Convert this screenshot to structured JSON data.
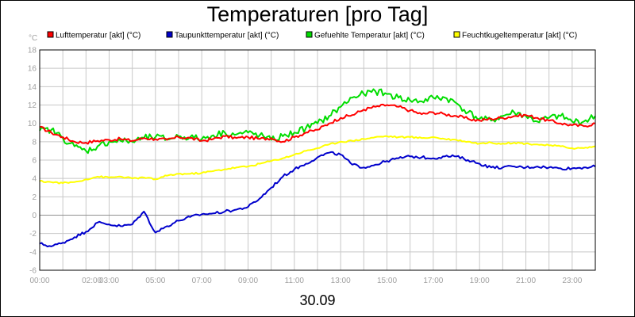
{
  "chart_data": {
    "type": "line",
    "title": "Temperaturen [pro Tag]",
    "date_label": "30.09",
    "y_unit": "°C",
    "xlim": [
      0,
      24
    ],
    "ylim": [
      -6,
      18
    ],
    "y_ticks": [
      -6,
      -4,
      -2,
      0,
      2,
      4,
      6,
      8,
      10,
      12,
      14,
      16,
      18
    ],
    "x_tick_labels": [
      {
        "h": 0,
        "label": "00:00"
      },
      {
        "h": 2.25,
        "label": "02:00"
      },
      {
        "h": 3.0,
        "label": "03:00"
      },
      {
        "h": 5.0,
        "label": "05:00"
      },
      {
        "h": 7.0,
        "label": "07:00"
      },
      {
        "h": 9.0,
        "label": "09:00"
      },
      {
        "h": 11.0,
        "label": "11:00"
      },
      {
        "h": 13.0,
        "label": "13:00"
      },
      {
        "h": 15.0,
        "label": "15:00"
      },
      {
        "h": 17.0,
        "label": "17:00"
      },
      {
        "h": 19.0,
        "label": "19:00"
      },
      {
        "h": 21.0,
        "label": "21:00"
      },
      {
        "h": 23.0,
        "label": "23:00"
      }
    ],
    "grid": true,
    "legend_position": "top",
    "x": [
      0,
      0.5,
      1,
      1.5,
      2,
      2.5,
      3,
      3.5,
      4,
      4.5,
      5,
      5.5,
      6,
      6.5,
      7,
      7.5,
      8,
      8.5,
      9,
      9.5,
      10,
      10.5,
      11,
      11.5,
      12,
      12.5,
      13,
      13.5,
      14,
      14.5,
      15,
      15.5,
      16,
      16.5,
      17,
      17.5,
      18,
      18.5,
      19,
      19.5,
      20,
      20.5,
      21,
      21.5,
      22,
      22.5,
      23,
      23.5,
      24
    ],
    "series": [
      {
        "name": "Lufttemperatur [akt] (°C)",
        "color": "#ff0000",
        "values": [
          9.6,
          9.0,
          8.5,
          8.0,
          7.9,
          8.1,
          8.2,
          8.3,
          8.1,
          8.4,
          8.3,
          8.2,
          8.5,
          8.4,
          8.1,
          8.3,
          8.6,
          8.4,
          8.5,
          8.3,
          8.4,
          8.0,
          8.5,
          9.0,
          9.3,
          10.0,
          10.6,
          10.9,
          11.5,
          11.8,
          12.0,
          11.8,
          11.4,
          11.0,
          11.2,
          11.0,
          10.8,
          10.5,
          10.3,
          10.5,
          10.6,
          10.8,
          10.9,
          10.6,
          10.3,
          10.0,
          9.8,
          9.7,
          10.0
        ]
      },
      {
        "name": "Taupunkttemperatur [akt] (°C)",
        "color": "#0000cc",
        "values": [
          -3.1,
          -3.4,
          -3.0,
          -2.4,
          -1.8,
          -0.8,
          -1.0,
          -1.2,
          -1.0,
          0.4,
          -1.9,
          -1.2,
          -0.6,
          -0.2,
          0.1,
          0.2,
          0.4,
          0.6,
          0.9,
          1.8,
          3.0,
          4.2,
          5.0,
          5.6,
          6.3,
          6.8,
          6.6,
          5.5,
          5.2,
          5.5,
          5.9,
          6.2,
          6.4,
          6.3,
          6.2,
          6.4,
          6.4,
          6.0,
          5.6,
          5.2,
          5.2,
          5.3,
          5.2,
          5.3,
          5.2,
          5.1,
          5.1,
          5.2,
          5.3
        ]
      },
      {
        "name": "Gefuehlte Temperatur [akt] (°C)",
        "color": "#00dd00",
        "values": [
          9.2,
          9.3,
          8.4,
          7.5,
          7.0,
          7.5,
          8.0,
          8.1,
          8.0,
          8.4,
          8.5,
          8.3,
          8.6,
          8.5,
          8.3,
          8.7,
          9.0,
          8.8,
          9.0,
          8.7,
          8.2,
          8.6,
          9.0,
          9.5,
          10.0,
          10.8,
          11.8,
          12.8,
          13.2,
          13.5,
          13.2,
          12.8,
          12.5,
          12.4,
          12.8,
          12.8,
          12.2,
          11.2,
          10.5,
          10.3,
          10.8,
          11.2,
          10.8,
          10.2,
          10.6,
          10.8,
          10.2,
          10.2,
          10.8
        ]
      },
      {
        "name": "Feuchtkugeltemperatur [akt] (°C)",
        "color": "#ffff00",
        "values": [
          3.7,
          3.6,
          3.5,
          3.6,
          3.9,
          4.2,
          4.1,
          4.2,
          4.0,
          4.1,
          3.9,
          4.3,
          4.5,
          4.5,
          4.6,
          4.8,
          5.0,
          5.2,
          5.3,
          5.6,
          5.9,
          6.2,
          6.6,
          7.0,
          7.3,
          7.7,
          8.0,
          8.1,
          8.3,
          8.5,
          8.6,
          8.5,
          8.5,
          8.4,
          8.5,
          8.3,
          8.2,
          8.0,
          7.8,
          7.9,
          7.8,
          7.9,
          7.8,
          7.7,
          7.6,
          7.5,
          7.3,
          7.3,
          7.5
        ]
      }
    ]
  }
}
